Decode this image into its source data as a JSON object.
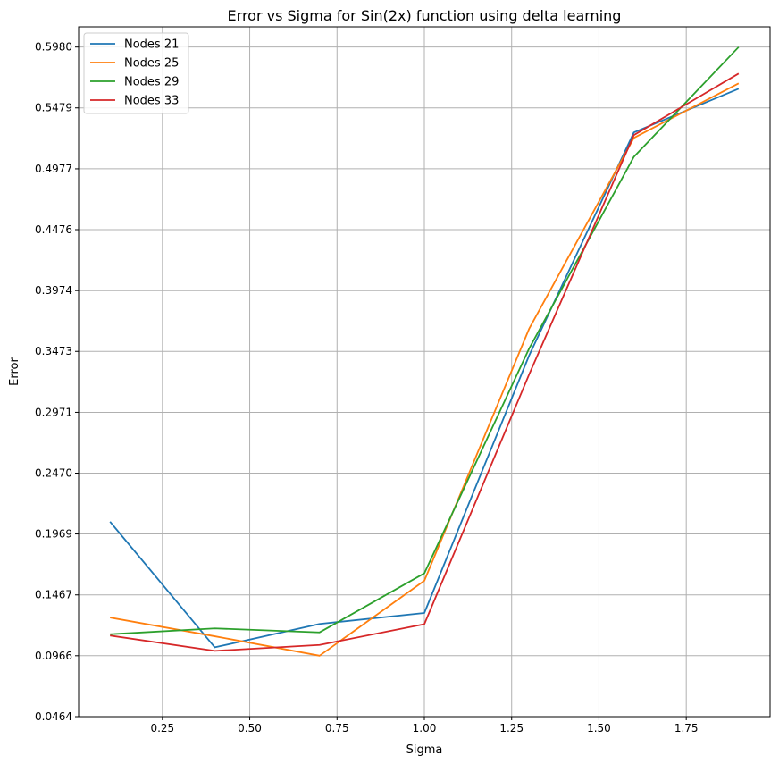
{
  "chart_data": {
    "type": "line",
    "title": "Error vs Sigma for Sin(2x) function using delta learning",
    "xlabel": "Sigma",
    "ylabel": "Error",
    "x": [
      0.1,
      0.4,
      0.7,
      1.0,
      1.3,
      1.6,
      1.9
    ],
    "xlim": [
      0.01,
      1.99
    ],
    "ylim": [
      0.0464,
      0.6147
    ],
    "x_ticks": [
      0.25,
      0.5,
      0.75,
      1.0,
      1.25,
      1.5,
      1.75
    ],
    "x_tick_labels": [
      "0.25",
      "0.50",
      "0.75",
      "1.00",
      "1.25",
      "1.50",
      "1.75"
    ],
    "y_ticks": [
      0.0464,
      0.0966,
      0.1467,
      0.1969,
      0.247,
      0.2971,
      0.3473,
      0.3974,
      0.4476,
      0.4977,
      0.5479,
      0.598
    ],
    "y_tick_labels": [
      "0.0464",
      "0.0966",
      "0.1467",
      "0.1969",
      "0.2470",
      "0.2971",
      "0.3473",
      "0.3974",
      "0.4476",
      "0.4977",
      "0.5479",
      "0.5980"
    ],
    "grid": true,
    "legend_position": "top-left",
    "series": [
      {
        "name": "Nodes 21",
        "color": "#1f77b4",
        "values": [
          0.207,
          0.1035,
          0.1228,
          0.1318,
          0.3439,
          0.5277,
          0.5637
        ]
      },
      {
        "name": "Nodes 25",
        "color": "#ff7f0e",
        "values": [
          0.128,
          0.1126,
          0.0966,
          0.1584,
          0.3659,
          0.5232,
          0.5681
        ]
      },
      {
        "name": "Nodes 29",
        "color": "#2ca02c",
        "values": [
          0.1143,
          0.1191,
          0.1158,
          0.1645,
          0.3496,
          0.5076,
          0.598
        ]
      },
      {
        "name": "Nodes 33",
        "color": "#d62728",
        "values": [
          0.1132,
          0.1006,
          0.1055,
          0.1226,
          0.3283,
          0.5255,
          0.5762
        ]
      }
    ]
  }
}
